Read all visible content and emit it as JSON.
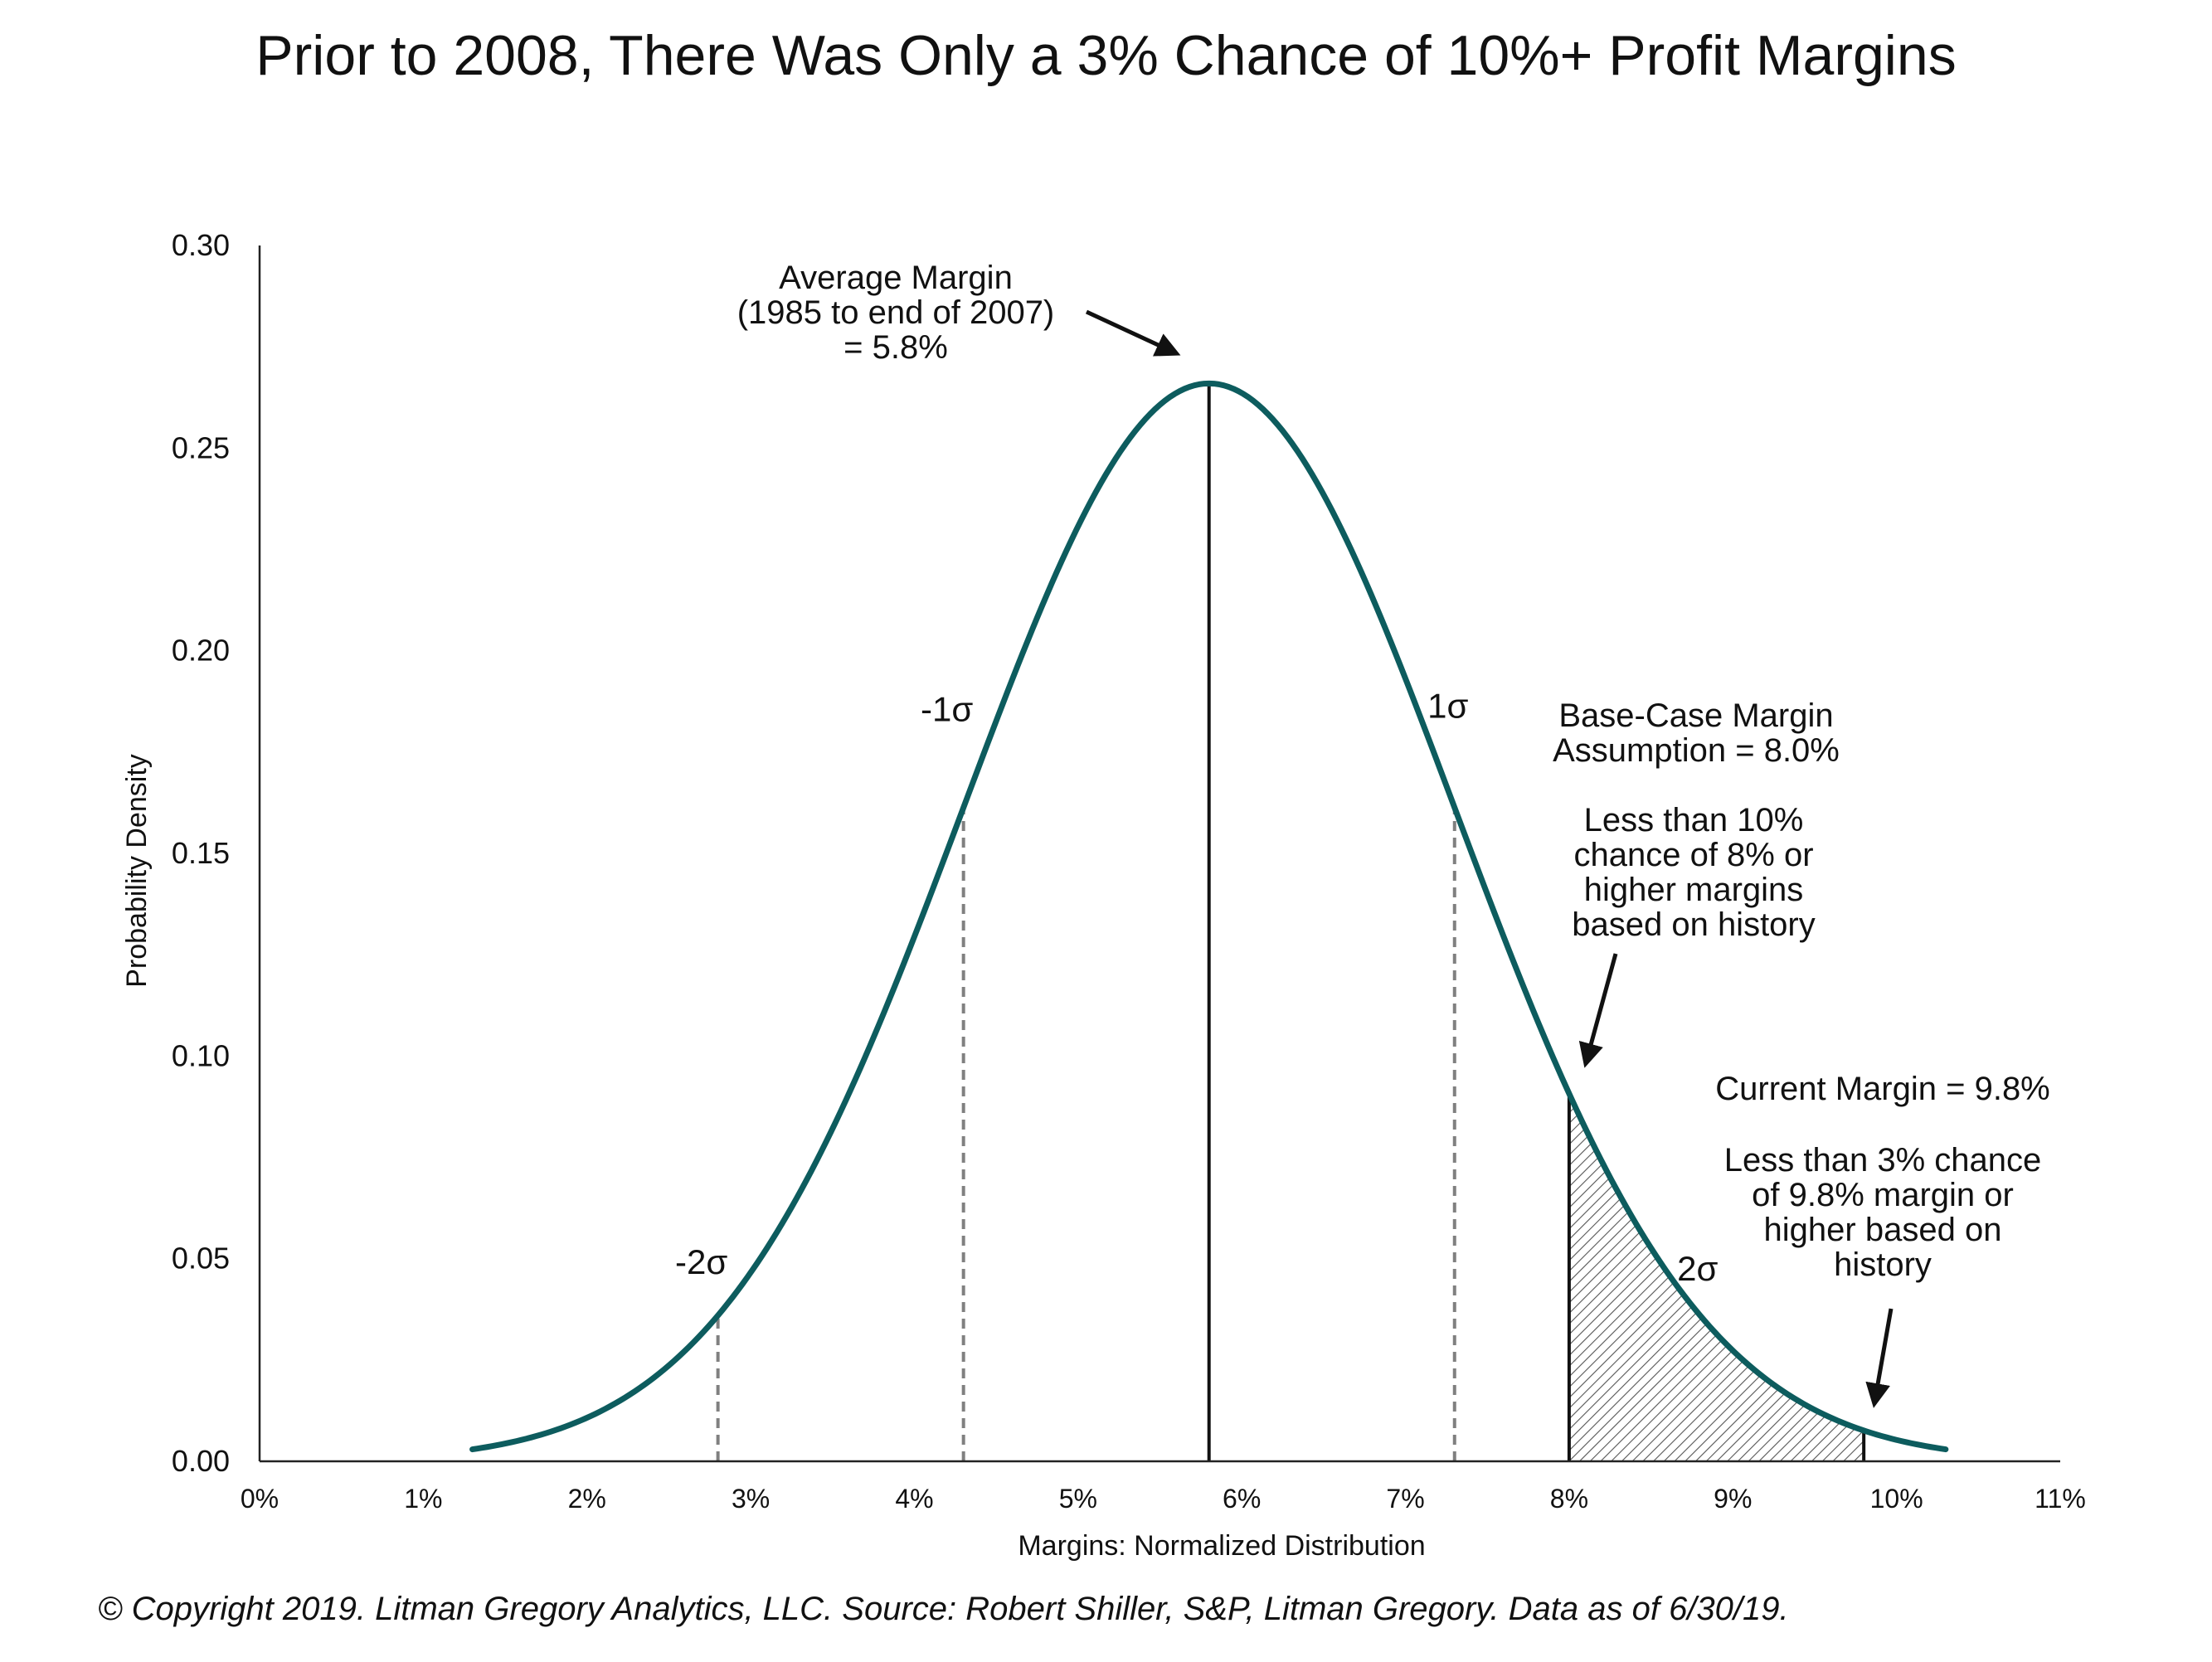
{
  "title": "Prior to 2008, There Was Only a 3% Chance of 10%+ Profit Margins",
  "footer": "© Copyright 2019. Litman Gregory Analytics, LLC. Source: Robert Shiller, S&P, Litman Gregory. Data as of 6/30/19.",
  "colors": {
    "curve": "#0d5c5e",
    "axis": "#222222",
    "guide_dashed": "#808080",
    "mean_line": "#111111",
    "hatch": "#555555"
  },
  "chart_data": {
    "type": "area",
    "distribution": "normal",
    "mean": 5.8,
    "sd": 1.5,
    "x_start": 1.3,
    "x_end": 10.3,
    "xlabel": "Margins: Normalized Distribution",
    "ylabel": "Probability Density",
    "xlim": [
      0,
      11
    ],
    "ylim": [
      0,
      0.3
    ],
    "x_ticks": [
      {
        "value": 0,
        "label": "0%"
      },
      {
        "value": 1,
        "label": "1%"
      },
      {
        "value": 2,
        "label": "2%"
      },
      {
        "value": 3,
        "label": "3%"
      },
      {
        "value": 4,
        "label": "4%"
      },
      {
        "value": 5,
        "label": "5%"
      },
      {
        "value": 6,
        "label": "6%"
      },
      {
        "value": 7,
        "label": "7%"
      },
      {
        "value": 8,
        "label": "8%"
      },
      {
        "value": 9,
        "label": "9%"
      },
      {
        "value": 10,
        "label": "10%"
      },
      {
        "value": 11,
        "label": "11%"
      }
    ],
    "y_ticks": [
      {
        "value": 0.0,
        "label": "0.00"
      },
      {
        "value": 0.05,
        "label": "0.05"
      },
      {
        "value": 0.1,
        "label": "0.10"
      },
      {
        "value": 0.15,
        "label": "0.15"
      },
      {
        "value": 0.2,
        "label": "0.20"
      },
      {
        "value": 0.25,
        "label": "0.25"
      },
      {
        "value": 0.3,
        "label": "0.30"
      }
    ],
    "grid": false,
    "guide_lines": [
      {
        "x": 2.8,
        "style": "dashed"
      },
      {
        "x": 4.3,
        "style": "dashed"
      },
      {
        "x": 5.8,
        "style": "solid"
      },
      {
        "x": 7.3,
        "style": "dashed"
      },
      {
        "x": 8.0,
        "style": "solid"
      },
      {
        "x": 9.8,
        "style": "solid"
      }
    ],
    "shaded_region": {
      "from": 8.0,
      "to": 9.8,
      "pattern": "hatched"
    },
    "sigma_labels": [
      {
        "text": "-2σ",
        "x": 2.8
      },
      {
        "text": "-1σ",
        "x": 4.3
      },
      {
        "text": "1σ",
        "x": 7.3
      },
      {
        "text": "2σ",
        "x": 8.8
      }
    ],
    "annotations": {
      "average": {
        "lines": [
          "Average Margin",
          "(1985 to end of 2007)",
          "= 5.8%"
        ]
      },
      "base_case": {
        "lines": [
          "Base-Case Margin",
          "Assumption = 8.0%"
        ]
      },
      "base_case_note": {
        "lines": [
          "Less than 10%",
          "chance of 8% or",
          "higher margins",
          "based on history"
        ]
      },
      "current": {
        "lines": [
          "Current Margin = 9.8%"
        ]
      },
      "current_note": {
        "lines": [
          "Less than 3% chance",
          "of 9.8% margin or",
          "higher based on",
          "history"
        ]
      }
    }
  }
}
